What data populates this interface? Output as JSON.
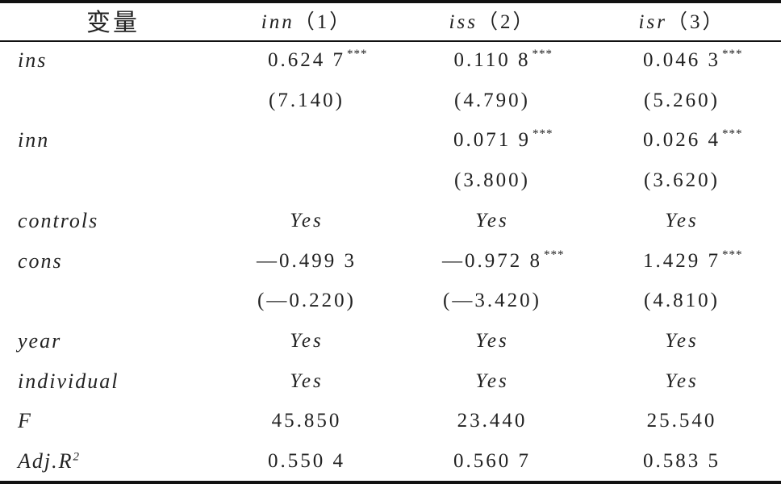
{
  "table": {
    "header": [
      {
        "text": "变量"
      },
      {
        "var": "inn",
        "num": "（1）"
      },
      {
        "var": "iss",
        "num": "（2）"
      },
      {
        "var": "isr",
        "num": "（3）"
      }
    ],
    "rows": [
      {
        "label": {
          "text": "ins"
        },
        "cells": [
          {
            "text": "0.624 7",
            "stars": "***"
          },
          {
            "text": "0.110 8",
            "stars": "***"
          },
          {
            "text": "0.046 3",
            "stars": "***"
          }
        ]
      },
      {
        "label": null,
        "cells": [
          {
            "text": "(7.140)"
          },
          {
            "text": "(4.790)"
          },
          {
            "text": "(5.260)"
          }
        ]
      },
      {
        "label": {
          "text": "inn"
        },
        "cells": [
          null,
          {
            "text": "0.071 9",
            "stars": "***"
          },
          {
            "text": "0.026 4",
            "stars": "***"
          }
        ]
      },
      {
        "label": null,
        "cells": [
          null,
          {
            "text": "(3.800)"
          },
          {
            "text": "(3.620)"
          }
        ]
      },
      {
        "label": {
          "text": "controls"
        },
        "cells": [
          {
            "text": "Yes"
          },
          {
            "text": "Yes"
          },
          {
            "text": "Yes"
          }
        ]
      },
      {
        "label": {
          "text": "cons"
        },
        "cells": [
          {
            "text": "—0.499 3"
          },
          {
            "text": "—0.972 8",
            "stars": "***"
          },
          {
            "text": "1.429 7",
            "stars": "***"
          }
        ]
      },
      {
        "label": null,
        "cells": [
          {
            "text": "(—0.220)"
          },
          {
            "text": "(—3.420)"
          },
          {
            "text": "(4.810)"
          }
        ]
      },
      {
        "label": {
          "text": "year"
        },
        "cells": [
          {
            "text": "Yes"
          },
          {
            "text": "Yes"
          },
          {
            "text": "Yes"
          }
        ]
      },
      {
        "label": {
          "text": "individual"
        },
        "cells": [
          {
            "text": "Yes"
          },
          {
            "text": "Yes"
          },
          {
            "text": "Yes"
          }
        ]
      },
      {
        "label": {
          "text": "F"
        },
        "cells": [
          {
            "text": "45.850"
          },
          {
            "text": "23.440"
          },
          {
            "text": "25.540"
          }
        ]
      },
      {
        "label": {
          "text": "Adj.R",
          "sup": "2"
        },
        "cells": [
          {
            "text": "0.550 4"
          },
          {
            "text": "0.560 7"
          },
          {
            "text": "0.583 5"
          }
        ]
      }
    ]
  }
}
